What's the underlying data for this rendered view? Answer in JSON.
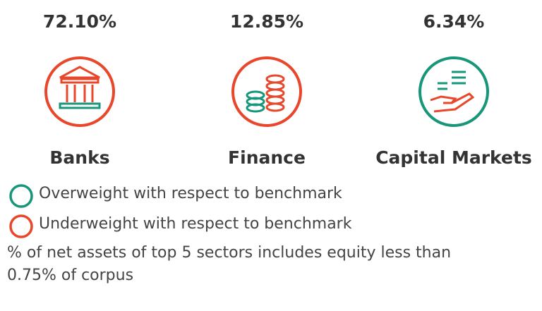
{
  "sectors": [
    {
      "value": "72.10%",
      "name": "Banks",
      "color": "#e8472b"
    },
    {
      "value": "12.85%",
      "name": "Finance",
      "color": "#e8472b"
    },
    {
      "value": "6.34%",
      "name": "Capital Markets",
      "color": "#17967a"
    }
  ],
  "legend": [
    {
      "label": "Overweight with respect to benchmark",
      "color": "#17967a"
    },
    {
      "label": "Underweight with respect to benchmark",
      "color": "#e8472b"
    }
  ],
  "footnote": "% of net assets of top 5 sectors includes equity less than 0.75% of corpus"
}
